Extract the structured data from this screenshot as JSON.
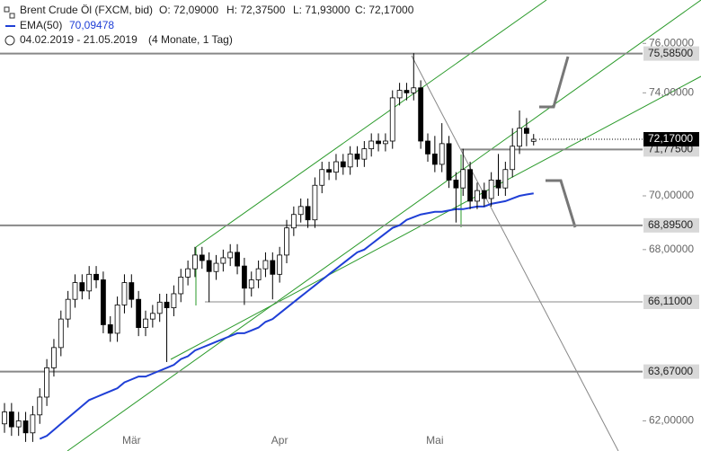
{
  "chart_data": {
    "type": "candlestick",
    "header": {
      "title": "Brent Crude Öl (FXCM, bid)",
      "open": "O: 72,09000",
      "high": "H: 72,37500",
      "low": "L: 71,93000",
      "close": "C: 72,17000",
      "ema_name": "EMA(50)",
      "ema_value": "70,09478",
      "range": "04.02.2019 - 21.05.2019",
      "span": "(4 Monate, 1 Tag)"
    },
    "log_scale": true,
    "ylim": [
      61.0,
      77.8
    ],
    "yticks": [
      {
        "value": 76,
        "label": "76,00000"
      },
      {
        "value": 74,
        "label": "74,00000"
      },
      {
        "value": 70,
        "label": "70,00000"
      },
      {
        "value": 68,
        "label": "68,00000"
      },
      {
        "value": 62,
        "label": "62,00000"
      }
    ],
    "x_labels": [
      {
        "value": 18,
        "label": "Mär"
      },
      {
        "value": 39,
        "label": "Apr"
      },
      {
        "value": 61,
        "label": "Mai"
      }
    ],
    "up_color": "#ffffff",
    "down_color": "#000000",
    "ohlc": [
      [
        61.9,
        62.6,
        61.6,
        62.3
      ],
      [
        62.3,
        62.6,
        61.5,
        61.8
      ],
      [
        61.8,
        62.3,
        61.5,
        62.0
      ],
      [
        62.0,
        62.3,
        61.3,
        61.6
      ],
      [
        61.6,
        62.5,
        61.3,
        62.2
      ],
      [
        62.2,
        63.1,
        61.9,
        62.8
      ],
      [
        62.8,
        64.1,
        62.5,
        63.8
      ],
      [
        63.8,
        64.8,
        63.5,
        64.5
      ],
      [
        64.5,
        65.8,
        64.2,
        65.5
      ],
      [
        65.5,
        66.5,
        65.2,
        66.2
      ],
      [
        66.2,
        67.1,
        65.9,
        66.8
      ],
      [
        66.8,
        67.1,
        66.2,
        66.5
      ],
      [
        66.5,
        67.4,
        66.2,
        67.1
      ],
      [
        67.1,
        67.4,
        66.6,
        66.9
      ],
      [
        66.9,
        67.2,
        65.0,
        65.3
      ],
      [
        65.3,
        65.6,
        64.7,
        65.0
      ],
      [
        65.0,
        66.3,
        64.7,
        66.0
      ],
      [
        66.0,
        67.1,
        65.7,
        66.8
      ],
      [
        66.8,
        67.1,
        65.9,
        66.2
      ],
      [
        66.2,
        66.5,
        64.9,
        65.2
      ],
      [
        65.2,
        65.8,
        64.9,
        65.5
      ],
      [
        65.5,
        66.0,
        65.2,
        65.7
      ],
      [
        65.7,
        66.4,
        65.4,
        66.1
      ],
      [
        66.1,
        66.4,
        64.0,
        65.9
      ],
      [
        65.9,
        66.7,
        65.6,
        66.4
      ],
      [
        66.4,
        67.3,
        66.1,
        67.0
      ],
      [
        67.0,
        67.6,
        66.7,
        67.3
      ],
      [
        67.3,
        68.1,
        67.0,
        67.8
      ],
      [
        67.8,
        68.1,
        67.3,
        67.6
      ],
      [
        67.6,
        67.9,
        66.1,
        67.2
      ],
      [
        67.2,
        67.8,
        66.9,
        67.5
      ],
      [
        67.5,
        68.0,
        67.2,
        67.7
      ],
      [
        67.7,
        68.2,
        67.4,
        67.9
      ],
      [
        67.9,
        68.2,
        67.1,
        67.4
      ],
      [
        67.4,
        67.7,
        66.0,
        66.6
      ],
      [
        66.6,
        67.2,
        66.3,
        66.9
      ],
      [
        66.9,
        67.6,
        66.6,
        67.3
      ],
      [
        67.3,
        67.9,
        67.0,
        67.6
      ],
      [
        67.6,
        67.9,
        66.2,
        67.1
      ],
      [
        67.1,
        68.1,
        66.8,
        67.8
      ],
      [
        67.8,
        69.1,
        67.5,
        68.8
      ],
      [
        68.8,
        69.6,
        68.5,
        69.3
      ],
      [
        69.3,
        69.9,
        69.0,
        69.6
      ],
      [
        69.6,
        69.9,
        68.8,
        69.1
      ],
      [
        69.1,
        70.7,
        68.8,
        70.4
      ],
      [
        70.4,
        71.3,
        70.1,
        71.0
      ],
      [
        71.0,
        71.3,
        70.6,
        70.9
      ],
      [
        70.9,
        71.6,
        70.6,
        71.3
      ],
      [
        71.3,
        71.6,
        70.8,
        71.1
      ],
      [
        71.1,
        71.9,
        70.8,
        71.6
      ],
      [
        71.6,
        71.9,
        71.1,
        71.4
      ],
      [
        71.4,
        72.1,
        71.1,
        71.8
      ],
      [
        71.8,
        72.4,
        71.5,
        72.1
      ],
      [
        72.1,
        72.4,
        71.7,
        72.0
      ],
      [
        72.0,
        72.4,
        71.7,
        72.1
      ],
      [
        72.1,
        74.1,
        71.8,
        73.8
      ],
      [
        73.8,
        74.4,
        73.5,
        74.1
      ],
      [
        74.1,
        74.4,
        73.7,
        74.0
      ],
      [
        74.0,
        75.6,
        73.7,
        74.2
      ],
      [
        74.2,
        74.5,
        71.8,
        72.1
      ],
      [
        72.1,
        72.4,
        71.3,
        71.6
      ],
      [
        71.6,
        72.3,
        70.9,
        71.2
      ],
      [
        71.2,
        72.8,
        70.9,
        72.0
      ],
      [
        72.0,
        72.3,
        70.3,
        70.6
      ],
      [
        70.6,
        70.9,
        69.0,
        70.3
      ],
      [
        70.3,
        71.8,
        70.0,
        71.0
      ],
      [
        71.0,
        71.3,
        69.5,
        69.8
      ],
      [
        69.8,
        70.5,
        69.5,
        70.2
      ],
      [
        70.2,
        70.5,
        69.6,
        69.9
      ],
      [
        69.9,
        70.9,
        69.6,
        70.6
      ],
      [
        70.6,
        71.6,
        70.0,
        70.3
      ],
      [
        70.3,
        71.3,
        70.0,
        71.0
      ],
      [
        71.0,
        72.6,
        70.7,
        71.9
      ],
      [
        71.9,
        73.3,
        71.6,
        72.6
      ],
      [
        72.6,
        73.0,
        71.9,
        72.4
      ],
      [
        72.09,
        72.375,
        71.93,
        72.17
      ]
    ],
    "ema": {
      "color": "#1f3fd6",
      "values": [
        null,
        null,
        null,
        null,
        null,
        61.4,
        61.5,
        61.7,
        61.9,
        62.1,
        62.3,
        62.5,
        62.7,
        62.8,
        62.9,
        63.0,
        63.1,
        63.3,
        63.4,
        63.5,
        63.5,
        63.6,
        63.7,
        63.8,
        63.9,
        64.1,
        64.2,
        64.4,
        64.5,
        64.6,
        64.7,
        64.8,
        64.9,
        65.0,
        65.0,
        65.1,
        65.2,
        65.4,
        65.5,
        65.7,
        65.9,
        66.1,
        66.3,
        66.5,
        66.7,
        66.9,
        67.1,
        67.3,
        67.5,
        67.7,
        67.9,
        68.0,
        68.2,
        68.4,
        68.6,
        68.8,
        68.9,
        69.1,
        69.2,
        69.3,
        69.35,
        69.4,
        69.4,
        69.45,
        69.5,
        69.5,
        69.55,
        69.6,
        69.6,
        69.7,
        69.75,
        69.8,
        69.9,
        70.0,
        70.05,
        70.09478
      ]
    },
    "levels": [
      {
        "value": 75.585,
        "label": "75,58500"
      },
      {
        "value": 71.775,
        "label": "71,77500"
      },
      {
        "value": 68.895,
        "label": "68,89500"
      },
      {
        "value": 66.11,
        "label": "66,11000"
      },
      {
        "value": 63.67,
        "label": "63,67000"
      }
    ],
    "price": {
      "value": 72.17,
      "label": "72,17000"
    }
  }
}
